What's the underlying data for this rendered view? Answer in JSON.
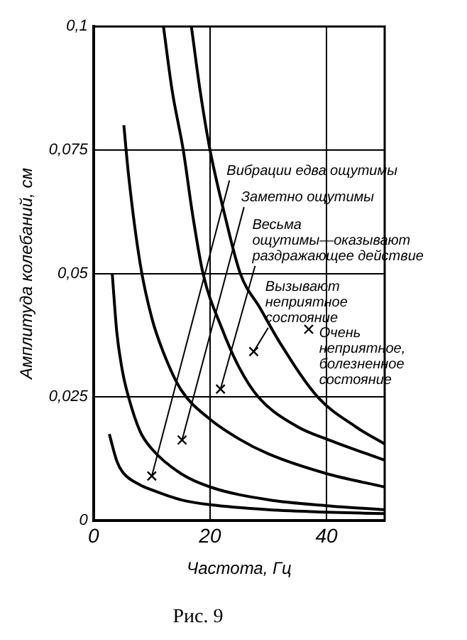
{
  "chart_data": {
    "type": "line",
    "title": "Рис. 9",
    "xlabel": "Частота, Гц",
    "ylabel": "Амплитуда колебаний, см",
    "xlim": [
      0,
      50
    ],
    "xticks": [
      0,
      20,
      40
    ],
    "ylim": [
      0,
      0.1
    ],
    "yticks": [
      0,
      {
        "value": 0.025,
        "label": "0,025"
      },
      {
        "value": 0.05,
        "label": "0,05"
      },
      {
        "value": 0.075,
        "label": "0,075"
      },
      {
        "value": 0.1,
        "label": "0,1"
      }
    ],
    "grid": true,
    "legend": false,
    "marker": "none",
    "line_style": "solid",
    "series": [
      {
        "color": "#000000",
        "x": [
          2.7,
          4,
          5,
          8,
          10,
          15,
          20,
          30,
          40,
          50
        ],
        "values": [
          0.0175,
          0.012,
          0.0098,
          0.0072,
          0.0062,
          0.0042,
          0.0032,
          0.0022,
          0.0017,
          0.0014
        ]
      },
      {
        "color": "#000000",
        "x": [
          3.2,
          4,
          5,
          6,
          8,
          10,
          15,
          20,
          30,
          40,
          50
        ],
        "values": [
          0.05,
          0.038,
          0.03,
          0.025,
          0.018,
          0.0145,
          0.0095,
          0.0068,
          0.0042,
          0.003,
          0.0022
        ]
      },
      {
        "color": "#000000",
        "x": [
          5.2,
          6,
          8,
          10,
          12,
          15,
          20,
          25,
          30,
          40,
          50
        ],
        "values": [
          0.08,
          0.07,
          0.052,
          0.041,
          0.034,
          0.0265,
          0.0205,
          0.0165,
          0.0135,
          0.0095,
          0.0068
        ]
      },
      {
        "color": "#000000",
        "x": [
          12,
          13.5,
          15.4,
          17,
          18.8,
          22,
          25,
          28.3,
          35,
          40,
          50
        ],
        "values": [
          0.1,
          0.087,
          0.075,
          0.062,
          0.05,
          0.039,
          0.031,
          0.025,
          0.019,
          0.0165,
          0.0122
        ]
      },
      {
        "color": "#000000",
        "x": [
          16.8,
          18.3,
          20,
          22.5,
          25.2,
          28.6,
          32,
          38.5,
          45,
          50
        ],
        "values": [
          0.1,
          0.087,
          0.075,
          0.062,
          0.05,
          0.043,
          0.036,
          0.025,
          0.019,
          0.0155
        ]
      }
    ],
    "annotations": [
      {
        "text": "Вибрации едва ощутимы",
        "x": 10,
        "y": 0.009
      },
      {
        "text": "Заметно ощутимы",
        "x": 15.2,
        "y": 0.0163
      },
      {
        "text": "Весьма ощутимы—оказывают раздражающее действие",
        "x": 21.8,
        "y": 0.0266
      },
      {
        "text": "Вызывают неприятное состояние",
        "x": 27.5,
        "y": 0.0342
      },
      "Очень неприятное, болезненное состояние"
    ]
  }
}
